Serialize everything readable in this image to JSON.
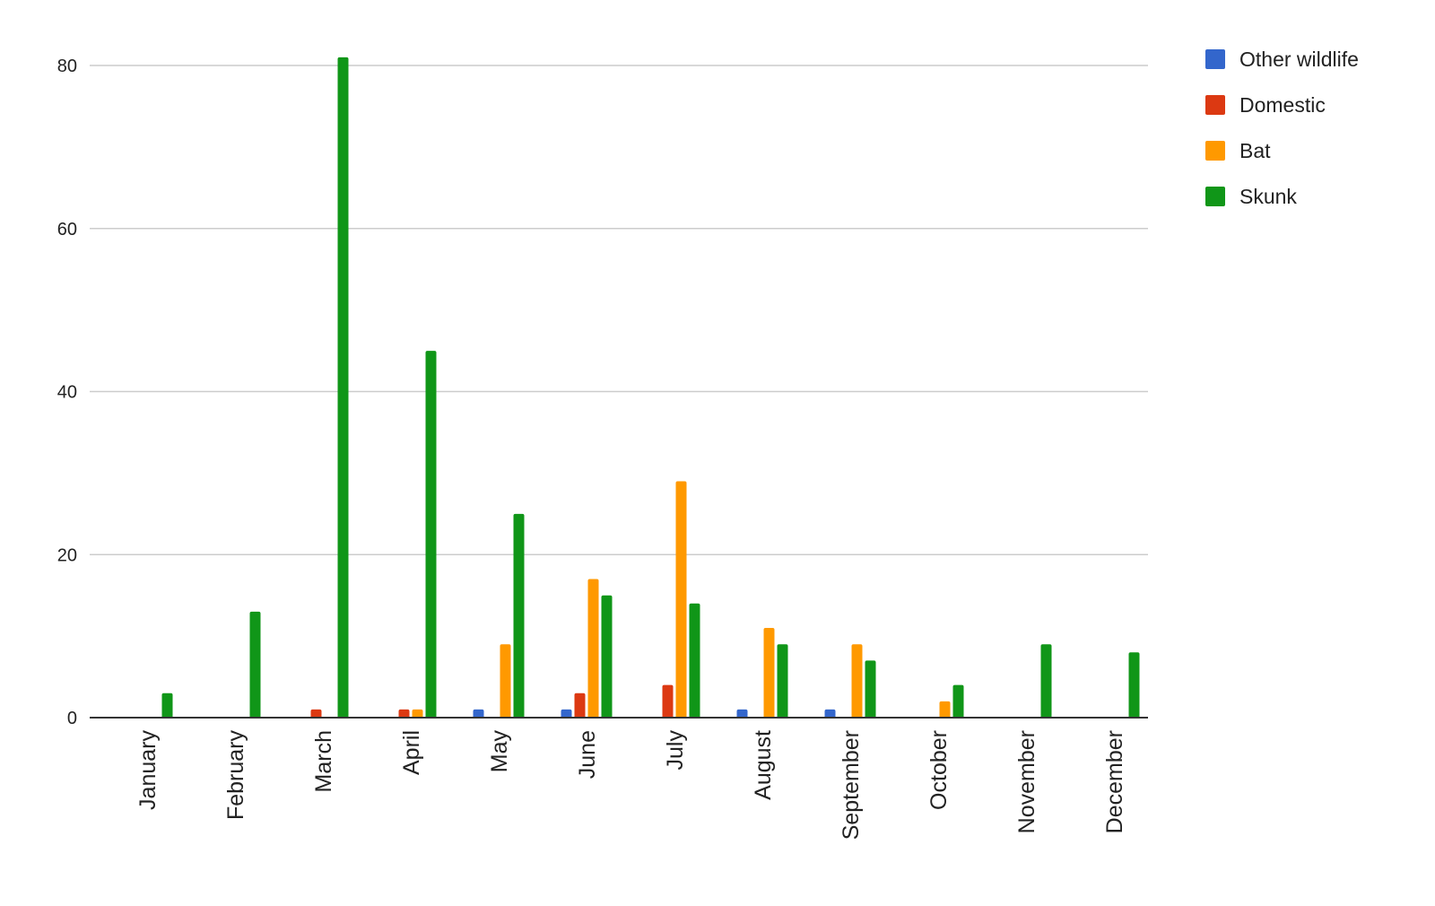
{
  "chart_data": {
    "type": "bar",
    "categories": [
      "January",
      "February",
      "March",
      "April",
      "May",
      "June",
      "July",
      "August",
      "September",
      "October",
      "November",
      "December"
    ],
    "series": [
      {
        "name": "Other wildlife",
        "color": "#3366cc",
        "values": [
          0,
          0,
          0,
          0,
          1,
          1,
          0,
          1,
          1,
          0,
          0,
          0
        ]
      },
      {
        "name": "Domestic",
        "color": "#dc3912",
        "values": [
          0,
          0,
          1,
          1,
          0,
          3,
          4,
          0,
          0,
          0,
          0,
          0
        ]
      },
      {
        "name": "Bat",
        "color": "#ff9900",
        "values": [
          0,
          0,
          0,
          1,
          9,
          17,
          29,
          11,
          9,
          2,
          0,
          0
        ]
      },
      {
        "name": "Skunk",
        "color": "#109618",
        "values": [
          3,
          13,
          81,
          45,
          25,
          15,
          14,
          9,
          7,
          4,
          9,
          8
        ]
      }
    ],
    "yticks": [
      0,
      20,
      40,
      60,
      80
    ],
    "ylim": [
      0,
      80
    ],
    "grid": true,
    "legend": "right"
  }
}
